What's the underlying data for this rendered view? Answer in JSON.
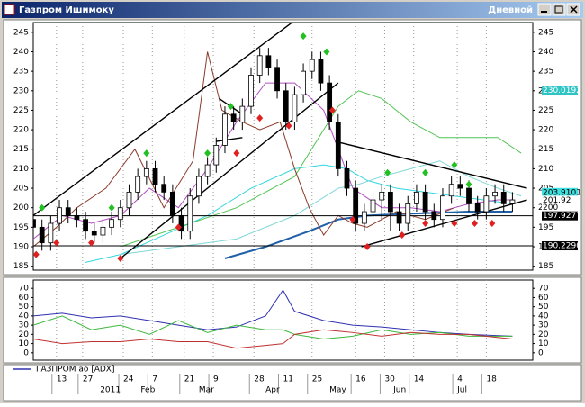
{
  "window": {
    "title": "Газпром Ишимоку",
    "timeframe": "Дневной"
  },
  "chart_data": [
    {
      "type": "candlestick",
      "xlim": [
        0,
        172
      ],
      "ylim": [
        184,
        247.5
      ],
      "yticks": [
        185,
        190,
        195,
        200,
        205,
        210,
        215,
        220,
        225,
        230,
        235,
        240,
        245
      ],
      "x": [
        0,
        3,
        6,
        9,
        12,
        15,
        18,
        21,
        24,
        27,
        30,
        33,
        36,
        39,
        42,
        45,
        48,
        51,
        54,
        57,
        60,
        63,
        66,
        69,
        72,
        75,
        78,
        81,
        84,
        87,
        90,
        93,
        96,
        99,
        102,
        105,
        108,
        111,
        114,
        117,
        120,
        123,
        126,
        129,
        132,
        135,
        138,
        141,
        144,
        147,
        150,
        153,
        156,
        159,
        162,
        165
      ],
      "open": [
        197,
        195,
        191,
        196,
        200,
        198,
        197,
        194,
        193,
        195,
        197,
        200,
        204,
        208,
        210,
        206,
        204,
        198,
        194,
        203,
        208,
        211,
        216,
        224,
        222,
        226,
        234,
        239,
        236,
        230,
        222,
        229,
        235,
        238,
        232,
        222,
        210,
        205,
        196,
        199,
        202,
        204,
        199,
        196,
        201,
        204,
        199,
        197,
        203,
        206,
        205,
        201,
        199,
        203,
        204,
        201
      ],
      "close": [
        195,
        191,
        196,
        200,
        198,
        197,
        194,
        193,
        195,
        197,
        200,
        204,
        208,
        210,
        206,
        204,
        198,
        194,
        203,
        208,
        211,
        216,
        224,
        222,
        226,
        234,
        239,
        236,
        230,
        222,
        229,
        235,
        238,
        232,
        222,
        210,
        205,
        196,
        199,
        202,
        204,
        199,
        196,
        201,
        204,
        199,
        197,
        203,
        206,
        205,
        201,
        199,
        203,
        204,
        201,
        202
      ],
      "high": [
        199,
        197,
        198,
        202,
        202,
        200,
        199,
        196,
        197,
        199,
        202,
        206,
        210,
        212,
        212,
        208,
        206,
        200,
        205,
        210,
        213,
        218,
        226,
        226,
        228,
        236,
        241,
        241,
        238,
        232,
        231,
        237,
        240,
        240,
        234,
        224,
        212,
        207,
        201,
        204,
        206,
        206,
        201,
        203,
        206,
        206,
        201,
        205,
        208,
        208,
        207,
        203,
        205,
        206,
        206,
        204
      ],
      "low": [
        193,
        189,
        189,
        194,
        196,
        195,
        192,
        191,
        191,
        193,
        195,
        198,
        202,
        206,
        204,
        202,
        196,
        192,
        192,
        201,
        206,
        209,
        214,
        220,
        220,
        224,
        232,
        234,
        228,
        220,
        220,
        227,
        233,
        230,
        220,
        208,
        203,
        194,
        194,
        197,
        197,
        194,
        194,
        194,
        199,
        197,
        195,
        195,
        201,
        203,
        199,
        197,
        197,
        201,
        199,
        199
      ],
      "overlays": [
        {
          "color": "#33d6e0",
          "x": [
            18,
            30,
            45,
            60,
            75,
            90,
            100,
            108,
            115,
            125,
            135,
            145,
            155,
            165
          ],
          "values": [
            186,
            188,
            193,
            198,
            205,
            210,
            211,
            210,
            207,
            205,
            204,
            203,
            202,
            201
          ]
        },
        {
          "color": "#1f5fa8",
          "x": [
            66,
            80,
            95,
            105,
            115,
            130,
            150,
            165
          ],
          "values": [
            187,
            190,
            194,
            197,
            198,
            198.5,
            199,
            199
          ]
        },
        {
          "color": "#55c455",
          "x": [
            30,
            50,
            70,
            90,
            105,
            112,
            120,
            130,
            140,
            150,
            160,
            168
          ],
          "values": [
            190,
            195,
            200,
            208,
            226,
            230,
            228,
            222,
            218,
            218,
            218,
            214
          ]
        },
        {
          "color": "#7fd6d6",
          "x": [
            30,
            50,
            70,
            90,
            105,
            112,
            120,
            130,
            140,
            150,
            160,
            168
          ],
          "values": [
            188,
            190,
            192,
            198,
            205,
            206,
            208,
            210,
            212,
            208,
            205,
            203
          ]
        },
        {
          "color": "#b04fc0",
          "x": [
            0,
            10,
            20,
            30,
            40,
            50,
            60,
            70,
            80,
            90,
            100,
            110,
            120,
            130,
            140,
            150,
            160,
            165
          ],
          "values": [
            192,
            198,
            196,
            198,
            205,
            200,
            210,
            222,
            232,
            232,
            225,
            205,
            200,
            200,
            199,
            201,
            202,
            202
          ]
        },
        {
          "color": "#8b3a2a",
          "x": [
            0,
            8,
            15,
            25,
            35,
            45,
            55,
            60,
            65,
            72,
            78,
            85,
            90,
            95,
            100,
            105,
            110,
            115,
            125,
            135,
            145
          ],
          "values": [
            190,
            195,
            200,
            205,
            215,
            200,
            212,
            240,
            225,
            222,
            220,
            222,
            210,
            200,
            193,
            198,
            196,
            195,
            199,
            197,
            200
          ]
        }
      ],
      "trendlines": [
        {
          "x": [
            0,
            90
          ],
          "values": [
            198,
            248
          ]
        },
        {
          "x": [
            30,
            105
          ],
          "values": [
            187,
            232
          ]
        },
        {
          "x": [
            104,
            170
          ],
          "values": [
            217,
            205
          ]
        },
        {
          "x": [
            113,
            170
          ],
          "values": [
            190,
            202
          ]
        },
        {
          "x": [
            64,
            72
          ],
          "values": [
            228,
            224
          ]
        },
        {
          "x": [
            63,
            72
          ],
          "values": [
            217,
            218
          ]
        }
      ],
      "fractals_up": {
        "color": "#22c022",
        "x": [
          3,
          27,
          39,
          60,
          68,
          93,
          101,
          122,
          135,
          145,
          150
        ],
        "values": [
          200,
          200,
          214,
          214,
          226,
          244,
          240,
          209,
          209,
          211,
          206
        ]
      },
      "fractals_down": {
        "color": "#e02020",
        "x": [
          1,
          8,
          20,
          30,
          50,
          70,
          78,
          88,
          103,
          110,
          115,
          127,
          135,
          145,
          152,
          158
        ],
        "values": [
          188,
          191,
          191,
          187,
          195,
          214,
          223,
          221,
          225,
          197,
          190,
          193,
          196,
          196,
          196,
          196
        ]
      },
      "price_labels": [
        {
          "value": 230.0192,
          "label": "230.0192",
          "bg": "#2ec4c4",
          "fg": "#ffffff"
        },
        {
          "value": 203.9101,
          "label": "203.9101",
          "bg": "#40e0e0",
          "fg": "#000000"
        },
        {
          "value": 201.92,
          "label": "201.92",
          "bg": "#ffffff",
          "fg": "#000000"
        },
        {
          "value": 200,
          "label": "200",
          "bg": "#ffffff",
          "fg": "#000000"
        },
        {
          "value": 197.9277,
          "label": "197.9277",
          "bg": "#000000",
          "fg": "#ffffff",
          "hline": true
        },
        {
          "value": 190.229,
          "label": "190.2290",
          "bg": "#000000",
          "fg": "#ffffff",
          "hline": true
        }
      ],
      "grid": true
    },
    {
      "type": "line",
      "xlim": [
        0,
        172
      ],
      "ylim": [
        -8,
        79
      ],
      "yticks": [
        0,
        10,
        20,
        30,
        40,
        50,
        60,
        70
      ],
      "x": [
        0,
        10,
        20,
        30,
        40,
        50,
        60,
        70,
        80,
        86,
        90,
        100,
        110,
        120,
        130,
        140,
        150,
        165
      ],
      "series": [
        {
          "name": "ГАЗПРОМ ао [ADX]",
          "color": "#3030b0",
          "values": [
            40,
            43,
            38,
            40,
            35,
            30,
            25,
            28,
            40,
            68,
            45,
            35,
            30,
            28,
            25,
            22,
            20,
            18
          ]
        },
        {
          "color": "#3cb83c",
          "values": [
            30,
            40,
            25,
            30,
            20,
            35,
            22,
            30,
            25,
            25,
            20,
            15,
            18,
            25,
            20,
            22,
            18,
            18
          ]
        },
        {
          "color": "#c03030",
          "values": [
            15,
            10,
            12,
            12,
            15,
            12,
            12,
            5,
            8,
            10,
            20,
            25,
            22,
            18,
            22,
            20,
            20,
            15
          ]
        }
      ],
      "xticks": [
        {
          "value": 8,
          "label": "13"
        },
        {
          "value": 17,
          "label": "27"
        },
        {
          "value": 31,
          "label": "24"
        },
        {
          "value": 41,
          "label": "7"
        },
        {
          "value": 52,
          "label": "21"
        },
        {
          "value": 62,
          "label": "9"
        },
        {
          "value": 76,
          "label": "28"
        },
        {
          "value": 86,
          "label": "11"
        },
        {
          "value": 96,
          "label": "25"
        },
        {
          "value": 111,
          "label": "16"
        },
        {
          "value": 121,
          "label": "30"
        },
        {
          "value": 131,
          "label": "14"
        },
        {
          "value": 146,
          "label": "4"
        },
        {
          "value": 156,
          "label": "18"
        }
      ],
      "month_ticks": [
        {
          "value": 23,
          "label": "2011"
        },
        {
          "value": 37,
          "label": "Feb"
        },
        {
          "value": 57,
          "label": "Mar"
        },
        {
          "value": 80,
          "label": "Apr"
        },
        {
          "value": 102,
          "label": "May"
        },
        {
          "value": 124,
          "label": "Jun"
        },
        {
          "value": 146,
          "label": "Jul"
        }
      ],
      "grid": true
    }
  ]
}
